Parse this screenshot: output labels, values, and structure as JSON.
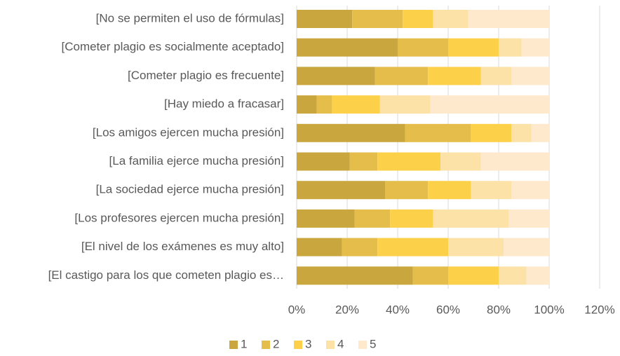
{
  "chart_data": {
    "type": "stacked-barh",
    "categories": [
      "[No se permiten el uso de fórmulas]",
      "[Cometer plagio es socialmente aceptado]",
      "[Cometer plagio es frecuente]",
      "[Hay miedo a fracasar]",
      "[Los amigos ejercen mucha presión]",
      "[La familia ejerce mucha presión]",
      "[La sociedad ejerce mucha presión]",
      "[Los profesores ejercen mucha presión]",
      "[El nivel de los exámenes es muy alto]",
      "[El castigo para los que cometen plagio es…"
    ],
    "series": [
      {
        "name": "1",
        "color": "#c9a73e",
        "values": [
          22,
          40,
          31,
          8,
          43,
          21,
          35,
          23,
          18,
          46
        ]
      },
      {
        "name": "2",
        "color": "#e5bd4b",
        "values": [
          20,
          20,
          21,
          6,
          26,
          11,
          17,
          14,
          14,
          14
        ]
      },
      {
        "name": "3",
        "color": "#fdd04a",
        "values": [
          12,
          20,
          21,
          19,
          16,
          25,
          17,
          17,
          28,
          20
        ]
      },
      {
        "name": "4",
        "color": "#fde2a8",
        "values": [
          14,
          9,
          12,
          20,
          8,
          16,
          16,
          30,
          22,
          11
        ]
      },
      {
        "name": "5",
        "color": "#fee9cc",
        "values": [
          32,
          11,
          15,
          47,
          7,
          27,
          15,
          16,
          18,
          9
        ]
      }
    ],
    "xlim": [
      0,
      120
    ],
    "xticks": [
      {
        "value": 0,
        "label": "0%"
      },
      {
        "value": 20,
        "label": "20%"
      },
      {
        "value": 40,
        "label": "40%"
      },
      {
        "value": 60,
        "label": "60%"
      },
      {
        "value": 80,
        "label": "80%"
      },
      {
        "value": 100,
        "label": "100%"
      },
      {
        "value": 120,
        "label": "120%"
      }
    ],
    "grid": true,
    "legend": "bottom"
  }
}
